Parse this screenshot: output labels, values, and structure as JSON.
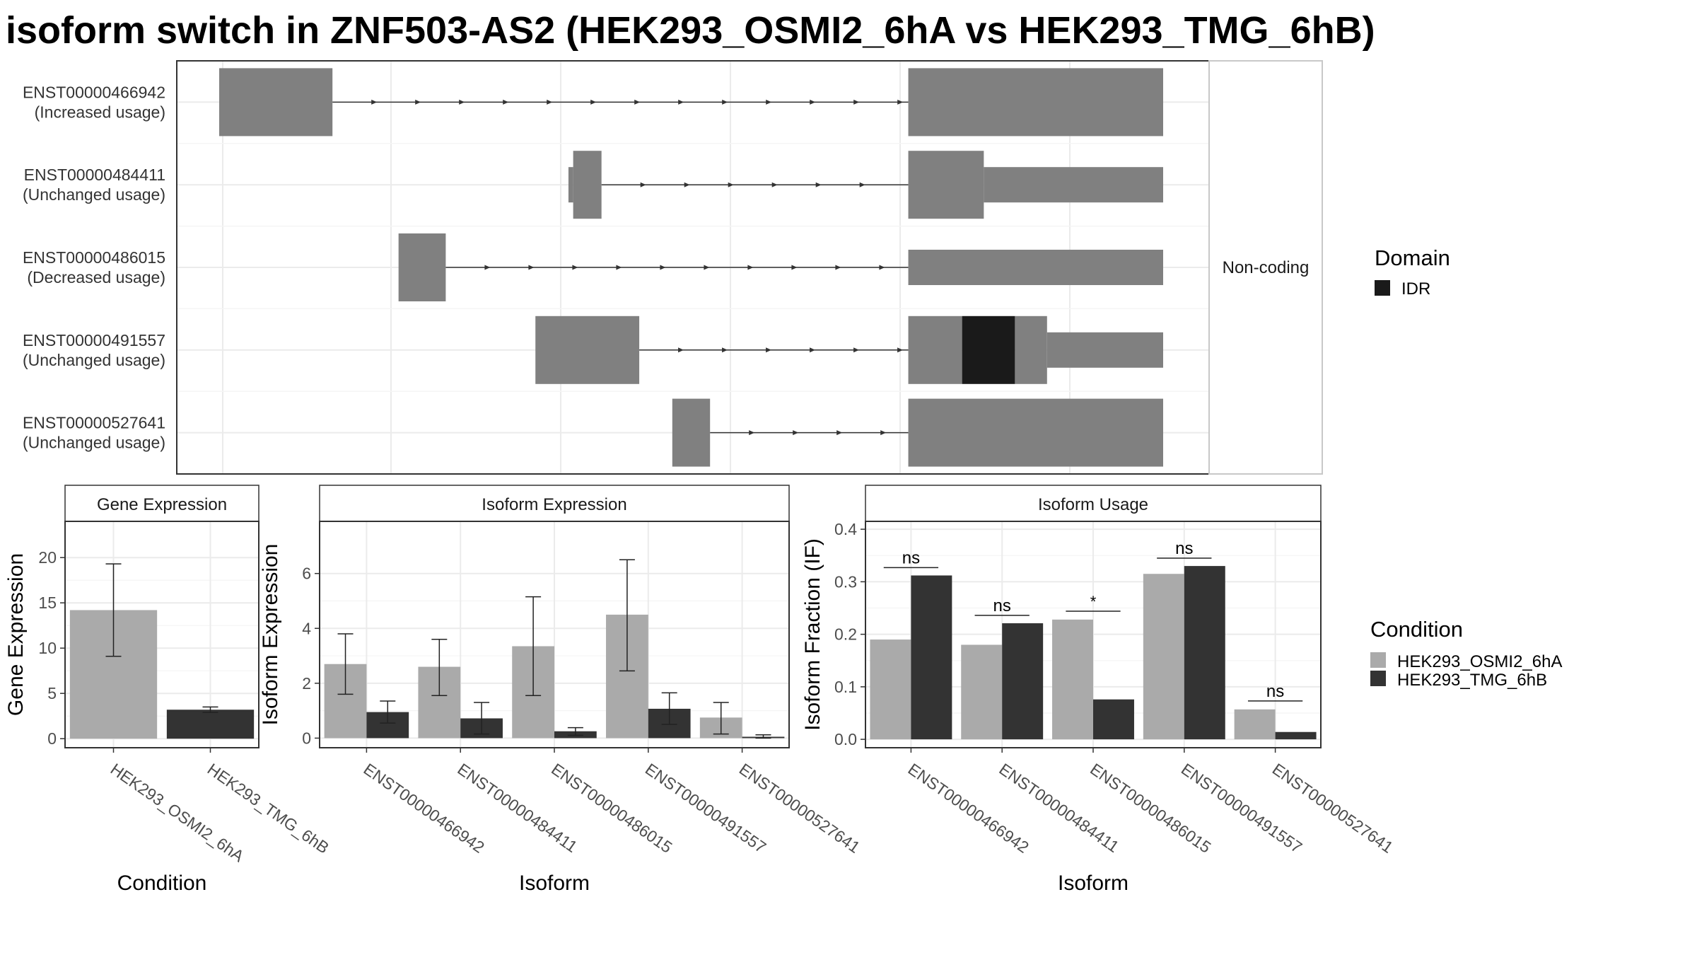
{
  "title": "isoform switch in ZNF503-AS2 (HEK293_OSMI2_6hA vs HEK293_TMG_6hB)",
  "colors": {
    "condition_a": "#aaaaaa",
    "condition_b": "#333333",
    "exon": "#808080",
    "idr": "#1a1a1a",
    "grid": "#ebebeb",
    "strip_fill": "#ffffff"
  },
  "transcripts": {
    "facet_label": "Non-coding",
    "legend_title": "Domain",
    "legend_items": [
      {
        "label": "IDR",
        "color": "#1a1a1a"
      }
    ],
    "rows": [
      {
        "id": "ENST00000466942",
        "usage": "(Increased usage)",
        "exons": [
          [
            0.0,
            0.12,
            "big"
          ],
          [
            0.73,
            1.0,
            "big"
          ]
        ]
      },
      {
        "id": "ENST00000484411",
        "usage": "(Unchanged usage)",
        "exons": [
          [
            0.37,
            0.375,
            "small"
          ],
          [
            0.375,
            0.405,
            "big"
          ],
          [
            0.73,
            0.81,
            "big"
          ],
          [
            0.81,
            1.0,
            "small"
          ]
        ]
      },
      {
        "id": "ENST00000486015",
        "usage": "(Decreased usage)",
        "exons": [
          [
            0.19,
            0.24,
            "big"
          ],
          [
            0.73,
            1.0,
            "small"
          ]
        ]
      },
      {
        "id": "ENST00000491557",
        "usage": "(Unchanged usage)",
        "exons": [
          [
            0.335,
            0.445,
            "big"
          ],
          [
            0.73,
            0.787,
            "big"
          ],
          [
            0.787,
            0.843,
            "idr"
          ],
          [
            0.843,
            0.877,
            "big"
          ],
          [
            0.877,
            1.0,
            "small"
          ]
        ]
      },
      {
        "id": "ENST00000527641",
        "usage": "(Unchanged usage)",
        "exons": [
          [
            0.48,
            0.52,
            "big"
          ],
          [
            0.73,
            1.0,
            "big"
          ]
        ]
      }
    ]
  },
  "condition_legend": {
    "title": "Condition",
    "items": [
      {
        "label": "HEK293_OSMI2_6hA",
        "color": "#aaaaaa"
      },
      {
        "label": "HEK293_TMG_6hB",
        "color": "#333333"
      }
    ]
  },
  "chart_data": [
    {
      "type": "bar",
      "title": "Gene Expression",
      "xlabel": "Condition",
      "ylabel": "Gene Expression",
      "categories": [
        "HEK293_OSMI2_6hA",
        "HEK293_TMG_6hB"
      ],
      "values": [
        14.2,
        3.2
      ],
      "error_low": [
        9.1,
        2.9
      ],
      "error_high": [
        19.3,
        3.5
      ],
      "ylim": [
        -1,
        24
      ],
      "yticks": [
        0,
        5,
        10,
        15,
        20
      ]
    },
    {
      "type": "bar",
      "title": "Isoform Expression",
      "xlabel": "Isoform",
      "ylabel": "Isoform Expression",
      "categories": [
        "ENST00000466942",
        "ENST00000484411",
        "ENST00000486015",
        "ENST00000491557",
        "ENST00000527641"
      ],
      "series": [
        {
          "name": "HEK293_OSMI2_6hA",
          "values": [
            2.7,
            2.6,
            3.35,
            4.5,
            0.75
          ],
          "error_low": [
            1.6,
            1.55,
            1.55,
            2.45,
            0.15
          ],
          "error_high": [
            3.8,
            3.6,
            5.15,
            6.5,
            1.3
          ]
        },
        {
          "name": "HEK293_TMG_6hB",
          "values": [
            0.95,
            0.72,
            0.25,
            1.07,
            0.05
          ],
          "error_low": [
            0.55,
            0.15,
            0.1,
            0.5,
            0.0
          ],
          "error_high": [
            1.35,
            1.3,
            0.38,
            1.65,
            0.12
          ]
        }
      ],
      "ylim": [
        -0.35,
        7.9
      ],
      "yticks": [
        0,
        2,
        4,
        6
      ]
    },
    {
      "type": "bar",
      "title": "Isoform Usage",
      "xlabel": "Isoform",
      "ylabel": "Isoform Fraction (IF)",
      "categories": [
        "ENST00000466942",
        "ENST00000484411",
        "ENST00000486015",
        "ENST00000491557",
        "ENST00000527641"
      ],
      "series": [
        {
          "name": "HEK293_OSMI2_6hA",
          "values": [
            0.19,
            0.18,
            0.228,
            0.315,
            0.057
          ]
        },
        {
          "name": "HEK293_TMG_6hB",
          "values": [
            0.312,
            0.221,
            0.076,
            0.33,
            0.014
          ]
        }
      ],
      "significance": [
        {
          "label": "ns",
          "y": 0.327
        },
        {
          "label": "ns",
          "y": 0.236
        },
        {
          "label": "*",
          "y": 0.244
        },
        {
          "label": "ns",
          "y": 0.345
        },
        {
          "label": "ns",
          "y": 0.073
        }
      ],
      "ylim": [
        -0.016,
        0.415
      ],
      "yticks": [
        0.0,
        0.1,
        0.2,
        0.3,
        0.4
      ],
      "ytick_labels": [
        "0.0",
        "0.1",
        "0.2",
        "0.3",
        "0.4"
      ]
    }
  ]
}
